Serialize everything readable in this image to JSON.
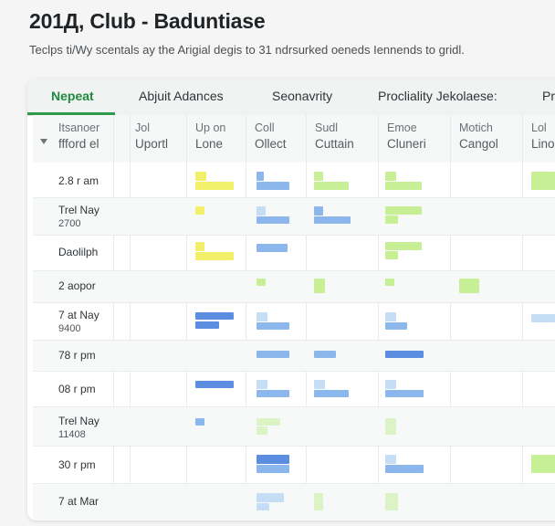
{
  "header": {
    "title": "201Д, Club - Baduntiase",
    "subtitle": "Teclps ti/Wy scentals ay the Arigial degis to 31 ndrsurked oeneds Iennends to gridl."
  },
  "tabs": [
    {
      "id": "nepeat",
      "label": "Nepeat",
      "active": true
    },
    {
      "id": "abjuit",
      "label": "Abjuit Adances",
      "active": false
    },
    {
      "id": "seonavrity",
      "label": "Seonavrity",
      "active": false
    },
    {
      "id": "procliality",
      "label": "Procliality Jekolaese:",
      "active": false
    },
    {
      "id": "pr",
      "label": "Pr",
      "active": false
    }
  ],
  "columns": [
    {
      "line1": "Itsanoer",
      "line2": "ffford el"
    },
    {
      "line1": "Jol",
      "line2": "Uportl"
    },
    {
      "line1": "Up on",
      "line2": "Lone"
    },
    {
      "line1": "Coll",
      "line2": "Ollect"
    },
    {
      "line1": "Sudl",
      "line2": "Cuttain"
    },
    {
      "line1": "Emoe",
      "line2": "Cluneri"
    },
    {
      "line1": "Motich",
      "line2": "Cangol"
    },
    {
      "line1": "Lol",
      "line2": "Lino"
    }
  ],
  "rows": [
    {
      "line1": "2.8 r am",
      "line2": ""
    },
    {
      "line1": "Trel Nay",
      "line2": "2700"
    },
    {
      "line1": "Daolilph",
      "line2": ""
    },
    {
      "line1": "2 aopor",
      "line2": ""
    },
    {
      "line1": "7 at Nay",
      "line2": "9400"
    },
    {
      "line1": "78 r pm",
      "line2": ""
    },
    {
      "line1": "08 r pm",
      "line2": ""
    },
    {
      "line1": "Trel Nay",
      "line2": "11408"
    },
    {
      "line1": "30 r pm",
      "line2": ""
    },
    {
      "line1": "7 at Mar",
      "line2": ""
    }
  ],
  "colors": {
    "accent": "#2e9a4c",
    "yellow": "#f2f06a",
    "green": "#c7ef95",
    "blue": "#8cb7ec",
    "blue_strong": "#5b8ee0"
  }
}
